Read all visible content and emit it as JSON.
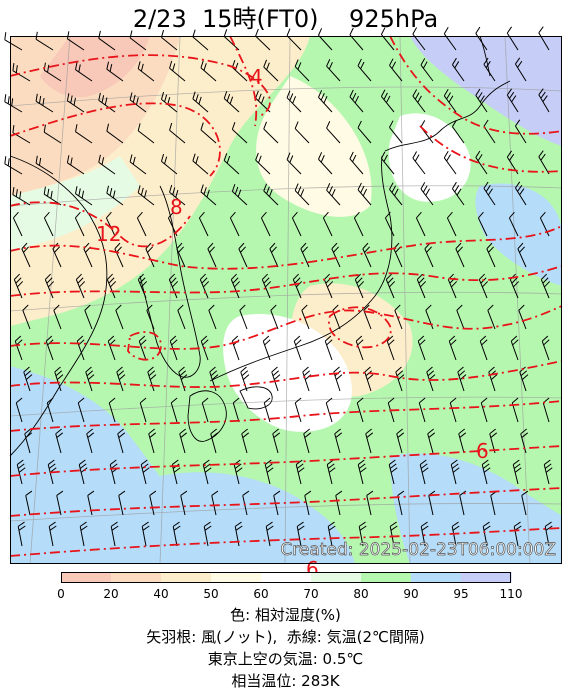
{
  "title": "2/23  15時(FT0)    925hPa",
  "map": {
    "created_stamp": "Created: 2025-02-23T06:00:00Z",
    "contour_labels": [
      "4",
      "8",
      "12",
      "6",
      "6"
    ],
    "colors": {
      "humidity_0": "#f8c8b8",
      "humidity_20": "#fbdcc0",
      "humidity_40": "#fdeecb",
      "humidity_50": "#fffbe4",
      "humidity_60": "#ffffff",
      "humidity_70": "#e6fbe4",
      "humidity_80": "#b6f7b0",
      "humidity_90": "#b5dcf9",
      "humidity_95": "#c6cdf6",
      "temperature_contour": "#e8141a",
      "coastline": "#000000",
      "grid": "#9a9a9a"
    }
  },
  "colorbar": {
    "ticks": [
      "0",
      "20",
      "40",
      "50",
      "60",
      "70",
      "80",
      "90",
      "95",
      "110"
    ],
    "colors": [
      "#f8c8b8",
      "#fbdcc0",
      "#fdeecb",
      "#fffbe4",
      "#ffffff",
      "#e6fbe4",
      "#b6f7b0",
      "#b5dcf9",
      "#c6cdf6"
    ]
  },
  "captions": {
    "line1": "色: 相対湿度(%)",
    "line2": "矢羽根: 風(ノット),  赤線: 気温(2℃間隔)",
    "line3": "東京上空の気温: 0.5℃",
    "line4": "相当温位: 283K"
  }
}
